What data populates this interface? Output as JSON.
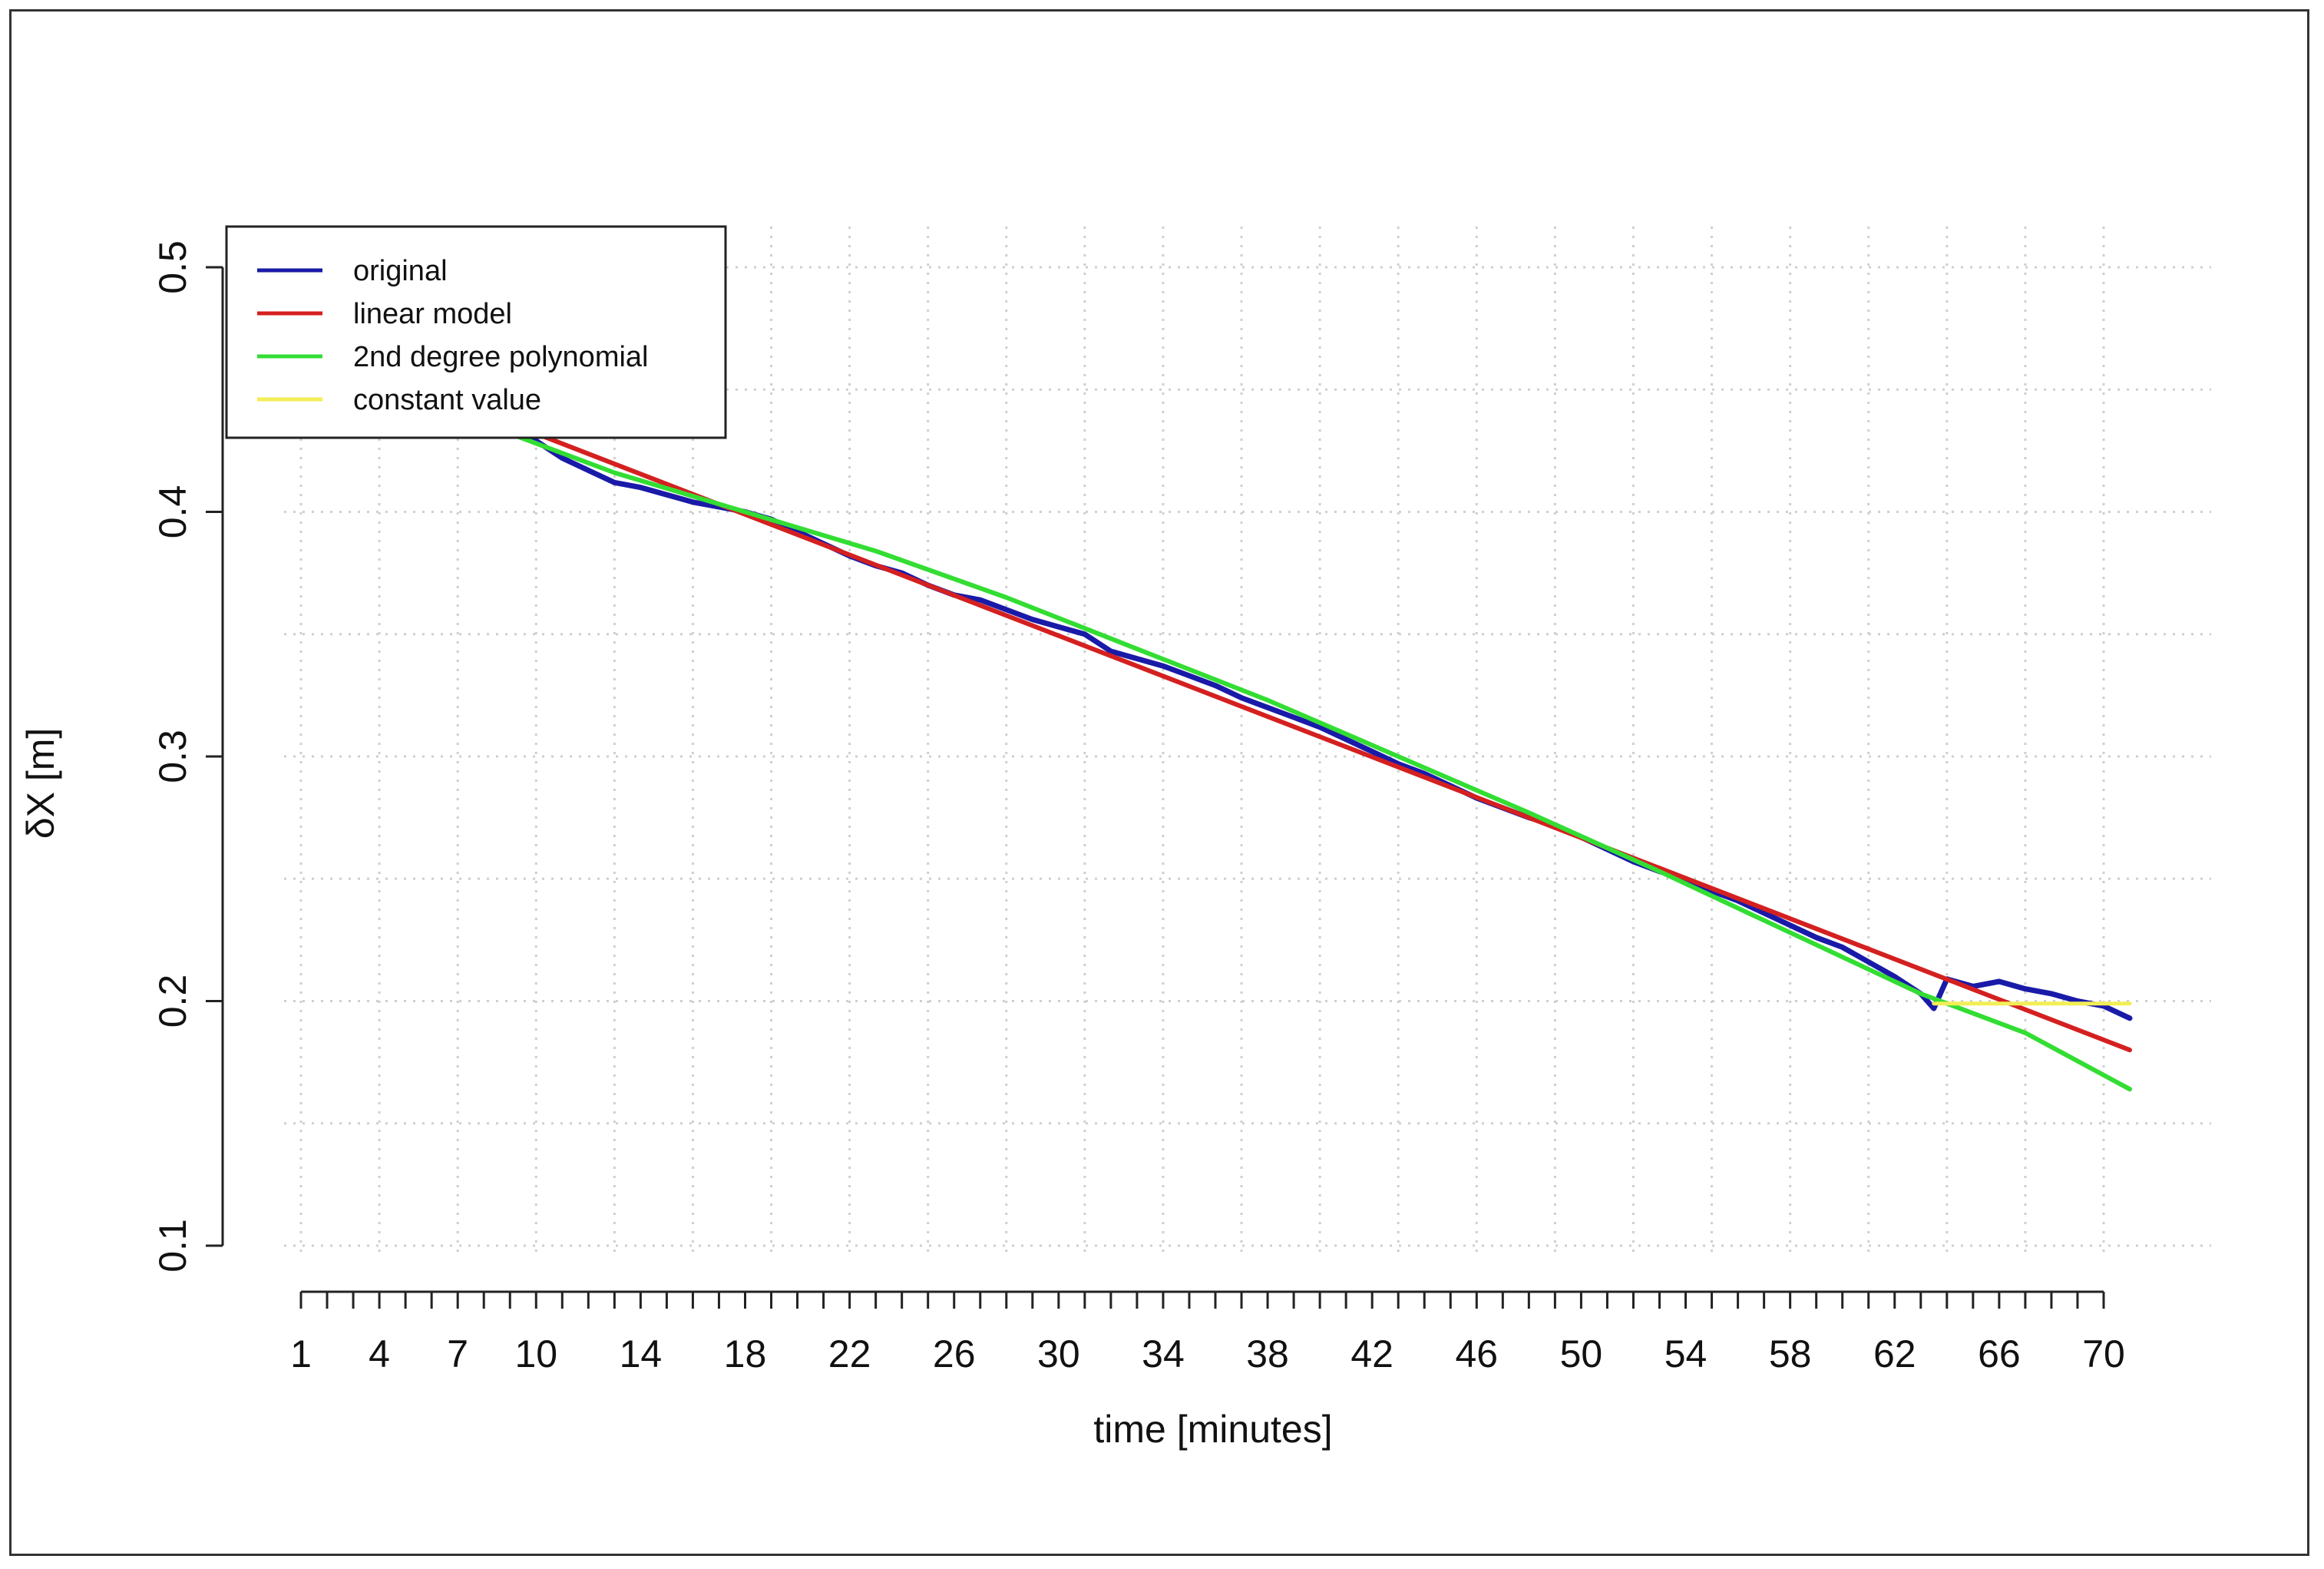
{
  "chart_data": {
    "type": "line",
    "title": "",
    "xlabel": "time [minutes]",
    "ylabel": "δX [m]",
    "x_tick_labels": [
      "1",
      "4",
      "7",
      "10",
      "14",
      "18",
      "22",
      "26",
      "30",
      "34",
      "38",
      "42",
      "46",
      "50",
      "54",
      "58",
      "62",
      "66",
      "70"
    ],
    "x_tick_values": [
      1,
      4,
      7,
      10,
      14,
      18,
      22,
      26,
      30,
      34,
      38,
      42,
      46,
      50,
      54,
      58,
      62,
      66,
      70
    ],
    "x_minor_ticks_every": 1,
    "xlim": [
      1,
      70
    ],
    "y_tick_labels": [
      "0.1",
      "0.2",
      "0.3",
      "0.4",
      "0.5"
    ],
    "y_tick_values": [
      0.1,
      0.2,
      0.3,
      0.4,
      0.5
    ],
    "ylim": [
      0.1,
      0.5
    ],
    "grid": true,
    "legend_position": "top-left",
    "series": [
      {
        "name": "original",
        "color": "#1a1aa8",
        "points": [
          [
            9,
            0.432
          ],
          [
            10,
            0.429
          ],
          [
            11,
            0.422
          ],
          [
            12,
            0.417
          ],
          [
            13,
            0.412
          ],
          [
            14,
            0.41
          ],
          [
            15,
            0.407
          ],
          [
            16,
            0.404
          ],
          [
            17,
            0.402
          ],
          [
            18,
            0.4
          ],
          [
            19,
            0.397
          ],
          [
            20,
            0.392
          ],
          [
            21,
            0.387
          ],
          [
            22,
            0.382
          ],
          [
            23,
            0.378
          ],
          [
            24,
            0.375
          ],
          [
            25,
            0.37
          ],
          [
            26,
            0.366
          ],
          [
            27,
            0.364
          ],
          [
            28,
            0.36
          ],
          [
            29,
            0.356
          ],
          [
            30,
            0.353
          ],
          [
            31,
            0.35
          ],
          [
            32,
            0.343
          ],
          [
            33,
            0.34
          ],
          [
            34,
            0.337
          ],
          [
            35,
            0.333
          ],
          [
            36,
            0.329
          ],
          [
            37,
            0.324
          ],
          [
            38,
            0.32
          ],
          [
            39,
            0.316
          ],
          [
            40,
            0.312
          ],
          [
            41,
            0.307
          ],
          [
            42,
            0.302
          ],
          [
            43,
            0.297
          ],
          [
            44,
            0.293
          ],
          [
            45,
            0.288
          ],
          [
            46,
            0.283
          ],
          [
            47,
            0.279
          ],
          [
            48,
            0.275
          ],
          [
            49,
            0.272
          ],
          [
            50,
            0.267
          ],
          [
            51,
            0.262
          ],
          [
            52,
            0.257
          ],
          [
            53,
            0.253
          ],
          [
            54,
            0.25
          ],
          [
            55,
            0.245
          ],
          [
            56,
            0.241
          ],
          [
            57,
            0.236
          ],
          [
            58,
            0.231
          ],
          [
            59,
            0.226
          ],
          [
            60,
            0.222
          ],
          [
            61,
            0.216
          ],
          [
            62,
            0.21
          ],
          [
            63,
            0.203
          ],
          [
            63.5,
            0.197
          ],
          [
            64,
            0.209
          ],
          [
            65,
            0.206
          ],
          [
            66,
            0.208
          ],
          [
            67,
            0.205
          ],
          [
            68,
            0.203
          ],
          [
            69,
            0.2
          ],
          [
            70,
            0.198
          ],
          [
            71,
            0.193
          ]
        ]
      },
      {
        "name": "linear model",
        "color": "#d42020",
        "points": [
          [
            10,
            0.432
          ],
          [
            71,
            0.18
          ]
        ]
      },
      {
        "name": "2nd degree polynomial",
        "color": "#33dd33",
        "points": [
          [
            9,
            0.432
          ],
          [
            13,
            0.416
          ],
          [
            18,
            0.4
          ],
          [
            23,
            0.384
          ],
          [
            28,
            0.365
          ],
          [
            33,
            0.344
          ],
          [
            38,
            0.323
          ],
          [
            43,
            0.3
          ],
          [
            48,
            0.277
          ],
          [
            53,
            0.253
          ],
          [
            58,
            0.228
          ],
          [
            63,
            0.203
          ],
          [
            67,
            0.187
          ],
          [
            71,
            0.164
          ]
        ]
      },
      {
        "name": "constant value",
        "color": "#f2ee55",
        "points": [
          [
            63.5,
            0.199
          ],
          [
            71,
            0.199
          ]
        ]
      }
    ]
  }
}
